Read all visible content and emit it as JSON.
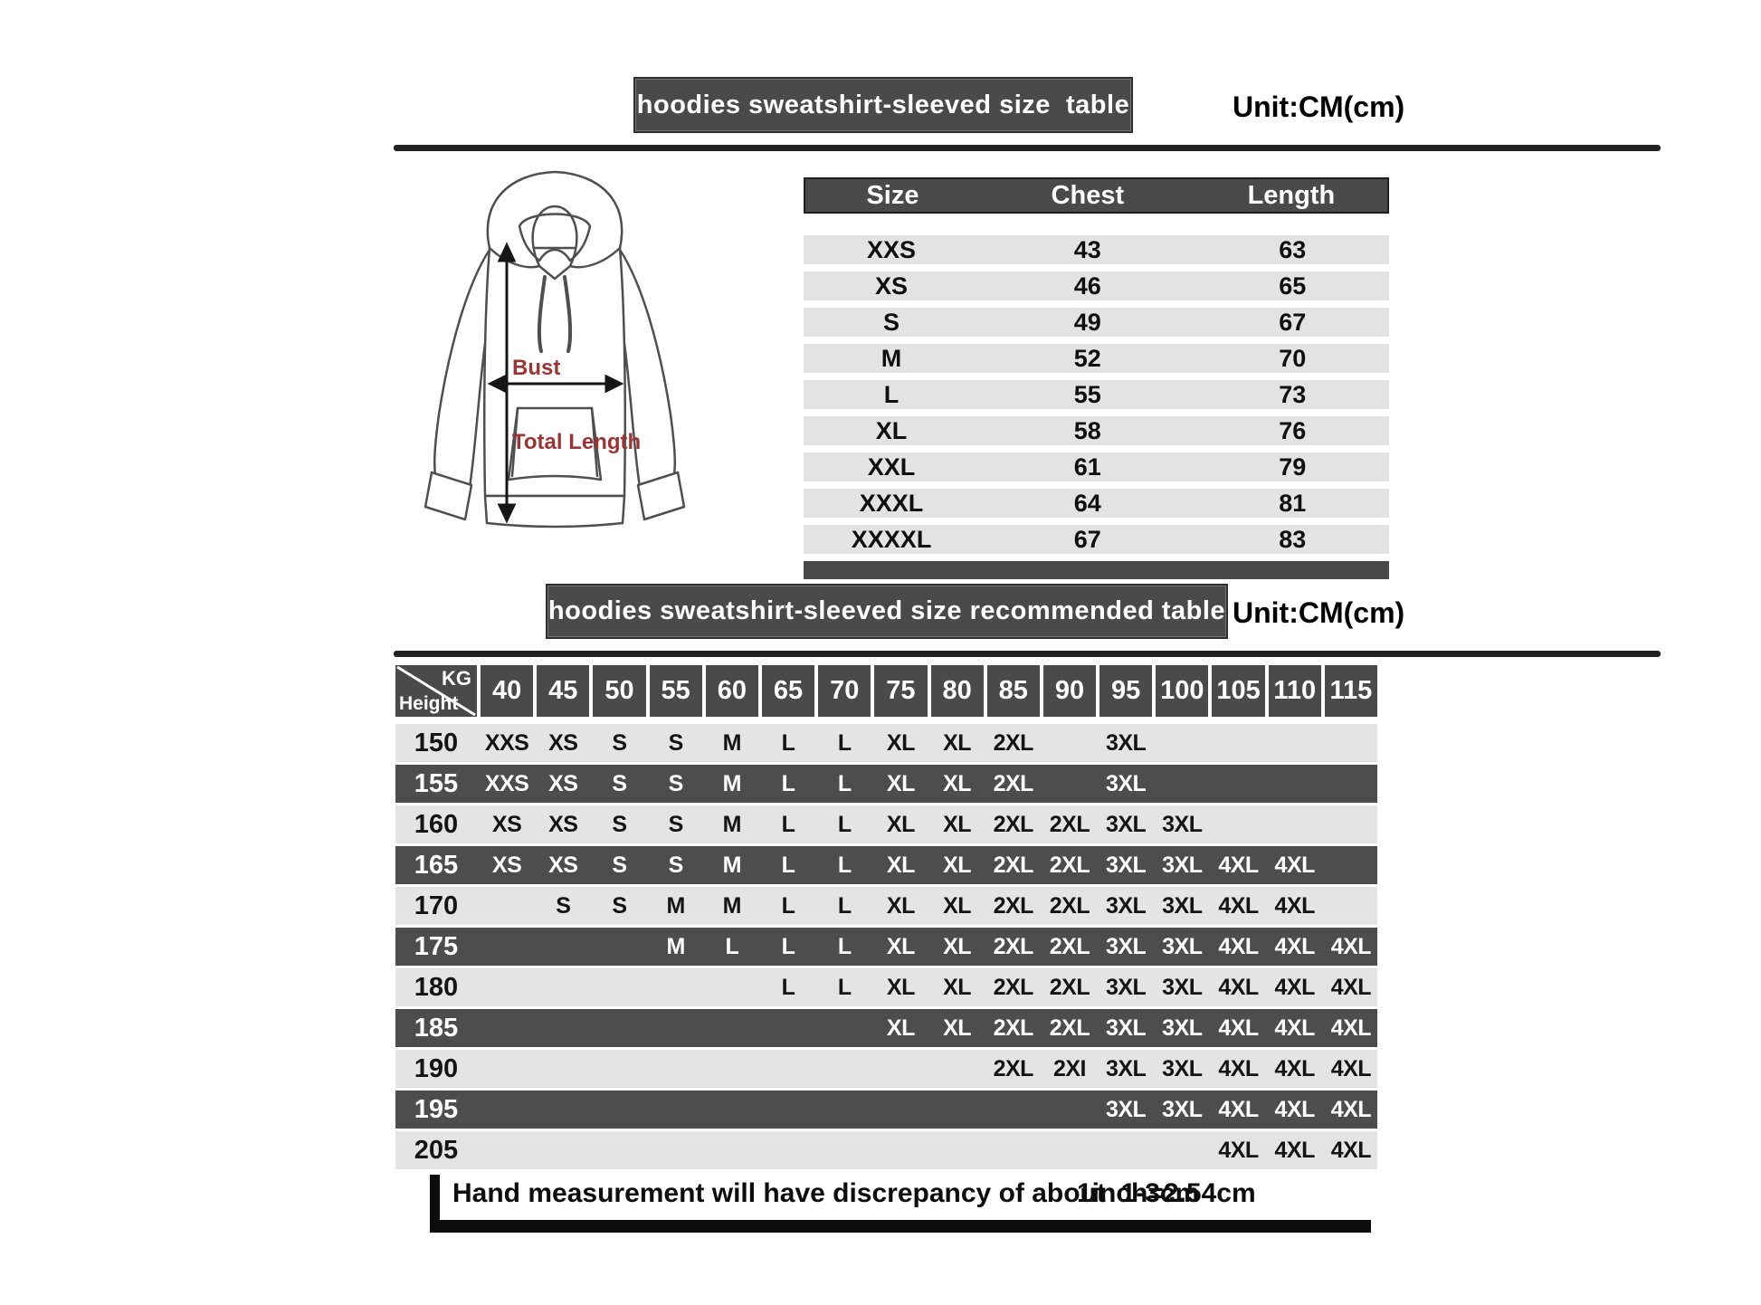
{
  "page": {
    "section1_title": "hoodies sweatshirt-sleeved size  table",
    "section1_unit": "Unit:CM(cm)",
    "section2_title": "hoodies sweatshirt-sleeved size recommended table",
    "section2_unit": "Unit:CM(cm)",
    "footer_note": "Hand measurement will have discrepancy of about  1-3cm",
    "footer_conversion": "1inch=2.54cm"
  },
  "diagram": {
    "bust_label": "Bust",
    "total_length_label": "Total Length",
    "label_color": "#9c3434"
  },
  "size_table": {
    "headers": [
      "Size",
      "Chest",
      "Length"
    ],
    "rows": [
      [
        "XXS",
        "43",
        "63"
      ],
      [
        "XS",
        "46",
        "65"
      ],
      [
        "S",
        "49",
        "67"
      ],
      [
        "M",
        "52",
        "70"
      ],
      [
        "L",
        "55",
        "73"
      ],
      [
        "XL",
        "58",
        "76"
      ],
      [
        "XXL",
        "61",
        "79"
      ],
      [
        "XXXL",
        "64",
        "81"
      ],
      [
        "XXXXL",
        "67",
        "83"
      ]
    ]
  },
  "recommended_table": {
    "corner": {
      "top_right": "KG",
      "bottom_left": "Height"
    },
    "weights": [
      "40",
      "45",
      "50",
      "55",
      "60",
      "65",
      "70",
      "75",
      "80",
      "85",
      "90",
      "95",
      "100",
      "105",
      "110",
      "115"
    ],
    "rows": [
      {
        "height": "150",
        "shade": "light",
        "cells": [
          "XXS",
          "XS",
          "S",
          "S",
          "M",
          "L",
          "L",
          "XL",
          "XL",
          "2XL",
          "",
          "3XL",
          "",
          "",
          "",
          ""
        ]
      },
      {
        "height": "155",
        "shade": "dark",
        "cells": [
          "XXS",
          "XS",
          "S",
          "S",
          "M",
          "L",
          "L",
          "XL",
          "XL",
          "2XL",
          "",
          "3XL",
          "",
          "",
          "",
          ""
        ]
      },
      {
        "height": "160",
        "shade": "light",
        "cells": [
          "XS",
          "XS",
          "S",
          "S",
          "M",
          "L",
          "L",
          "XL",
          "XL",
          "2XL",
          "2XL",
          "3XL",
          "3XL",
          "",
          "",
          ""
        ]
      },
      {
        "height": "165",
        "shade": "dark",
        "cells": [
          "XS",
          "XS",
          "S",
          "S",
          "M",
          "L",
          "L",
          "XL",
          "XL",
          "2XL",
          "2XL",
          "3XL",
          "3XL",
          "4XL",
          "4XL",
          ""
        ]
      },
      {
        "height": "170",
        "shade": "light",
        "cells": [
          "",
          "S",
          "S",
          "M",
          "M",
          "L",
          "L",
          "XL",
          "XL",
          "2XL",
          "2XL",
          "3XL",
          "3XL",
          "4XL",
          "4XL",
          ""
        ]
      },
      {
        "height": "175",
        "shade": "dark",
        "cells": [
          "",
          "",
          "",
          "M",
          "L",
          "L",
          "L",
          "XL",
          "XL",
          "2XL",
          "2XL",
          "3XL",
          "3XL",
          "4XL",
          "4XL",
          "4XL"
        ]
      },
      {
        "height": "180",
        "shade": "light",
        "cells": [
          "",
          "",
          "",
          "",
          "",
          "L",
          "L",
          "XL",
          "XL",
          "2XL",
          "2XL",
          "3XL",
          "3XL",
          "4XL",
          "4XL",
          "4XL"
        ]
      },
      {
        "height": "185",
        "shade": "dark",
        "cells": [
          "",
          "",
          "",
          "",
          "",
          "",
          "",
          "XL",
          "XL",
          "2XL",
          "2XL",
          "3XL",
          "3XL",
          "4XL",
          "4XL",
          "4XL"
        ]
      },
      {
        "height": "190",
        "shade": "light",
        "cells": [
          "",
          "",
          "",
          "",
          "",
          "",
          "",
          "",
          "",
          "2XL",
          "2XI",
          "3XL",
          "3XL",
          "4XL",
          "4XL",
          "4XL"
        ]
      },
      {
        "height": "195",
        "shade": "dark",
        "cells": [
          "",
          "",
          "",
          "",
          "",
          "",
          "",
          "",
          "",
          "",
          "",
          "3XL",
          "3XL",
          "4XL",
          "4XL",
          "4XL"
        ]
      },
      {
        "height": "205",
        "shade": "light",
        "cells": [
          "",
          "",
          "",
          "",
          "",
          "",
          "",
          "",
          "",
          "",
          "",
          "",
          "",
          "4XL",
          "4XL",
          "4XL"
        ]
      }
    ]
  },
  "colors": {
    "header_bar": "#4a4a4a",
    "light_row": "#e4e4e4",
    "dark_row": "#4d4d4d",
    "diagram_label": "#9c3434",
    "text": "#111111"
  }
}
